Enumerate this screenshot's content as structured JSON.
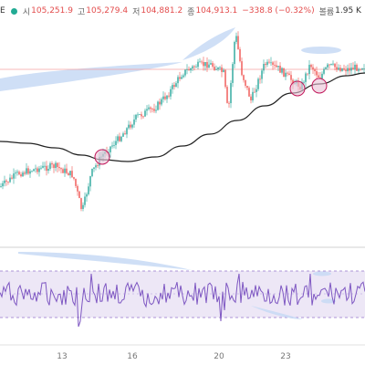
{
  "legend": {
    "symbol_fragment": "E",
    "open_label": "시",
    "open": "105,251.9",
    "high_label": "고",
    "high": "105,279.4",
    "low_label": "저",
    "low": "104,881.2",
    "close_label": "종",
    "close": "104,913.1",
    "change": "−338.8 (−0.32%)",
    "volume_label": "볼륨",
    "volume": "1.95 K"
  },
  "x_axis": {
    "ticks": [
      "13",
      "16",
      "20",
      "23"
    ]
  },
  "colors": {
    "up": "#26a69a",
    "down": "#ef5350",
    "moving_average": "#222222",
    "highlight": "#c7d9f5",
    "circle_marker": "#c2185b",
    "oscillator_line": "#7e57c2",
    "oscillator_band": "#ede7f6"
  },
  "icons": {
    "status": "green-dot-icon"
  }
}
